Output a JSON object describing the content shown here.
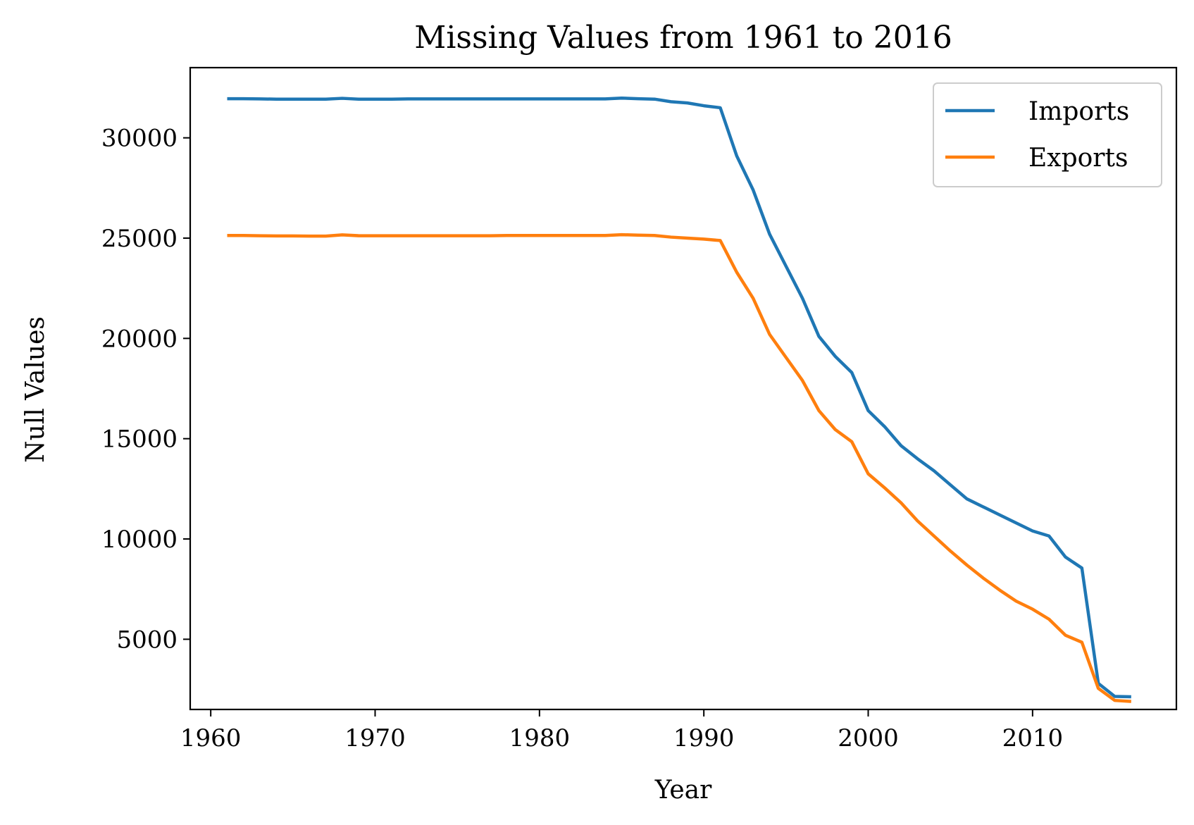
{
  "chart_data": {
    "type": "line",
    "title": "Missing Values from 1961 to 2016",
    "xlabel": "Year",
    "ylabel": "Null Values",
    "xlim": [
      1958.75,
      2018.75
    ],
    "ylim": [
      1500,
      33500
    ],
    "xticks": [
      1960,
      1970,
      1980,
      1990,
      2000,
      2010
    ],
    "yticks": [
      5000,
      10000,
      15000,
      20000,
      25000,
      30000
    ],
    "grid": false,
    "legend_position": "upper-right",
    "x": [
      1961,
      1962,
      1963,
      1964,
      1965,
      1966,
      1967,
      1968,
      1969,
      1970,
      1971,
      1972,
      1973,
      1974,
      1975,
      1976,
      1977,
      1978,
      1979,
      1980,
      1981,
      1982,
      1983,
      1984,
      1985,
      1986,
      1987,
      1988,
      1989,
      1990,
      1991,
      1992,
      1993,
      1994,
      1995,
      1996,
      1997,
      1998,
      1999,
      2000,
      2001,
      2002,
      2003,
      2004,
      2005,
      2006,
      2007,
      2008,
      2009,
      2010,
      2011,
      2012,
      2013,
      2014,
      2015,
      2016
    ],
    "series": [
      {
        "name": "Imports",
        "color": "#1f77b4",
        "values": [
          31950,
          31950,
          31940,
          31930,
          31930,
          31930,
          31930,
          31970,
          31930,
          31930,
          31930,
          31940,
          31940,
          31940,
          31940,
          31940,
          31940,
          31940,
          31940,
          31940,
          31940,
          31940,
          31940,
          31940,
          31980,
          31950,
          31930,
          31800,
          31740,
          31600,
          31500,
          29100,
          27400,
          25200,
          23600,
          22000,
          20100,
          19100,
          18300,
          16400,
          15600,
          14650,
          14000,
          13400,
          12700,
          12000,
          11600,
          11200,
          10800,
          10400,
          10150,
          9100,
          8550,
          2800,
          2150,
          2130
        ]
      },
      {
        "name": "Exports",
        "color": "#ff7f0e",
        "values": [
          25130,
          25130,
          25120,
          25110,
          25110,
          25100,
          25100,
          25160,
          25120,
          25120,
          25120,
          25120,
          25120,
          25120,
          25120,
          25120,
          25120,
          25130,
          25130,
          25130,
          25130,
          25130,
          25130,
          25130,
          25170,
          25150,
          25130,
          25050,
          25000,
          24950,
          24880,
          23300,
          22000,
          20200,
          19050,
          17900,
          16400,
          15450,
          14850,
          13250,
          12550,
          11800,
          10900,
          10150,
          9400,
          8700,
          8050,
          7450,
          6900,
          6500,
          6000,
          5200,
          4850,
          2550,
          1950,
          1900
        ]
      }
    ]
  }
}
